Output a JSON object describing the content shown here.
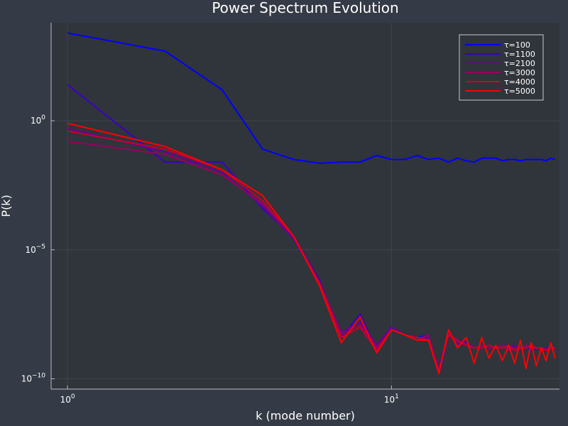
{
  "chart_data": {
    "type": "line",
    "title": "Power Spectrum Evolution",
    "xlabel": "k (mode number)",
    "ylabel": "P(k)",
    "xscale": "log",
    "yscale": "log",
    "xlim": [
      0.89,
      33
    ],
    "ylim_log10": [
      -10.4,
      3.8
    ],
    "grid": true,
    "legend_position": "top-right",
    "x_ticks": [
      {
        "value": 1,
        "base": "10",
        "exp": "0"
      },
      {
        "value": 10,
        "base": "10",
        "exp": "1"
      }
    ],
    "y_ticks": [
      {
        "log10": 0,
        "base": "10",
        "exp": "0"
      },
      {
        "log10": -5,
        "base": "10",
        "exp": "−5"
      },
      {
        "log10": -10,
        "base": "10",
        "exp": "−10"
      }
    ],
    "x": [
      1,
      2,
      3,
      4,
      5,
      6,
      7,
      8,
      9,
      10,
      11,
      12,
      13,
      14,
      15,
      16,
      17,
      18,
      19,
      20,
      21,
      22,
      23,
      24,
      25,
      26,
      27,
      28,
      29,
      30,
      31,
      32
    ],
    "series": [
      {
        "name": "τ=100",
        "color": "#0000ff",
        "log10_values": [
          3.4,
          2.7,
          1.2,
          -1.1,
          -1.5,
          -1.65,
          -1.6,
          -1.6,
          -1.35,
          -1.5,
          -1.5,
          -1.35,
          -1.5,
          -1.45,
          -1.6,
          -1.45,
          -1.55,
          -1.6,
          -1.45,
          -1.45,
          -1.45,
          -1.55,
          -1.5,
          -1.5,
          -1.55,
          -1.5,
          -1.5,
          -1.5,
          -1.5,
          -1.55,
          -1.45,
          -1.5
        ]
      },
      {
        "name": "τ=1100",
        "color": "#3a00c8",
        "log10_values": [
          1.4,
          -1.6,
          -1.6,
          -3.4,
          -4.5,
          -6.2,
          -8.4,
          -7.5,
          -8.9,
          -8,
          -8.3,
          -8.4,
          -8.3,
          -9.8,
          -8.3,
          -8.5,
          -8.6,
          -8.8,
          -8.8,
          -8.7,
          -8.8,
          -8.8,
          -8.7,
          -8.8,
          -8.8,
          -8.7,
          -8.9,
          -8.8,
          -8.8,
          -8.9,
          -8.8,
          -8.8
        ]
      },
      {
        "name": "τ=2100",
        "color": "#6e0096",
        "log10_values": [
          -0.3,
          -1.2,
          -2.0,
          -3.3,
          -4.6,
          -6.3,
          -8.2,
          -7.8,
          -8.7,
          -8.0,
          -8.3,
          -8.5,
          -8.4,
          -9.6,
          -8.2,
          -8.7,
          -8.6,
          -8.8,
          -8.7,
          -8.8,
          -8.8,
          -8.7,
          -8.8,
          -8.7,
          -8.8,
          -8.8,
          -8.7,
          -8.8,
          -8.8,
          -8.8,
          -8.8,
          -8.8
        ]
      },
      {
        "name": "τ=3000",
        "color": "#9b005f",
        "log10_values": [
          -0.8,
          -1.3,
          -2.1,
          -3.2,
          -4.5,
          -6.3,
          -8.3,
          -7.9,
          -8.8,
          -8.1,
          -8.3,
          -8.5,
          -8.3,
          -9.7,
          -8.3,
          -8.6,
          -8.7,
          -8.8,
          -8.7,
          -8.8,
          -8.8,
          -8.7,
          -8.9,
          -8.8,
          -8.8,
          -8.7,
          -8.8,
          -8.8,
          -8.8,
          -8.9,
          -8.8,
          -8.8
        ]
      },
      {
        "name": "τ=4000",
        "color": "#c8002d",
        "log10_values": [
          -0.4,
          -1.1,
          -1.9,
          -3.1,
          -4.5,
          -6.3,
          -8.4,
          -8.0,
          -8.9,
          -8.1,
          -8.3,
          -8.4,
          -8.5,
          -9.7,
          -8.3,
          -8.5,
          -8.7,
          -8.8,
          -8.8,
          -8.7,
          -8.8,
          -8.8,
          -8.7,
          -8.9,
          -8.8,
          -8.8,
          -8.7,
          -8.8,
          -8.8,
          -8.9,
          -8.8,
          -8.8
        ]
      },
      {
        "name": "τ=5000",
        "color": "#ff0000",
        "log10_values": [
          -0.1,
          -1.0,
          -1.9,
          -2.9,
          -4.5,
          -6.4,
          -8.6,
          -7.6,
          -9.0,
          -8.1,
          -8.3,
          -8.5,
          -8.5,
          -9.8,
          -8.1,
          -8.8,
          -8.4,
          -9.4,
          -8.4,
          -9.2,
          -8.7,
          -9.3,
          -8.7,
          -9.4,
          -8.5,
          -9.6,
          -8.6,
          -9.5,
          -8.8,
          -9.3,
          -8.6,
          -9.2
        ]
      }
    ]
  }
}
